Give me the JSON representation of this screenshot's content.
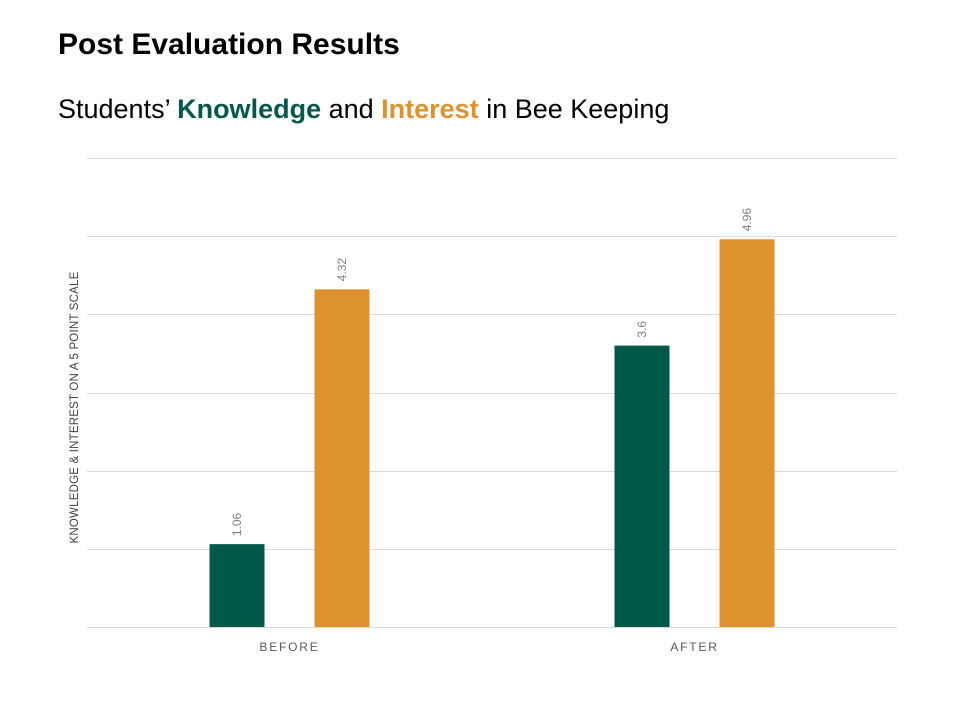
{
  "slide": {
    "title": "Post Evaluation Results",
    "subtitle": {
      "prefix": "Students’ ",
      "knowledge": "Knowledge",
      "and": " and ",
      "interest": "Interest",
      "suffix": " in Bee Keeping"
    }
  },
  "colors": {
    "knowledge": "#02594a",
    "interest": "#de922d",
    "grid": "#d9d9d9"
  },
  "chart_data": {
    "type": "bar",
    "categories": [
      "BEFORE",
      "AFTER"
    ],
    "series": [
      {
        "values": [
          1.06,
          3.6
        ]
      },
      {
        "values": [
          4.32,
          4.96
        ]
      }
    ],
    "title": "",
    "xlabel": "",
    "ylabel": "KNOWLEDGE & INTEREST ON A 5 POINT SCALE",
    "ylim": [
      0,
      6
    ],
    "grid": true,
    "legend": "none"
  }
}
